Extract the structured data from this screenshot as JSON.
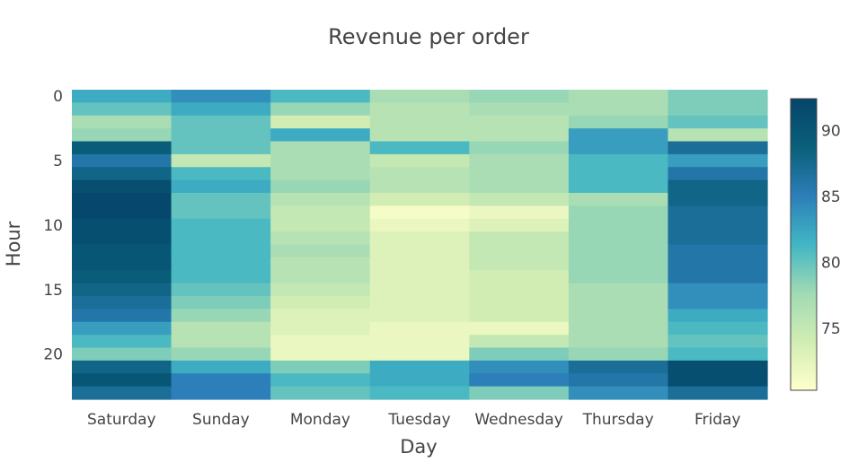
{
  "chart_data": {
    "type": "heatmap",
    "title": "Revenue per order",
    "xlabel": "Day",
    "ylabel": "Hour",
    "x": [
      "Saturday",
      "Sunday",
      "Monday",
      "Tuesday",
      "Wednesday",
      "Thursday",
      "Friday"
    ],
    "y": [
      0,
      1,
      2,
      3,
      4,
      5,
      6,
      7,
      8,
      9,
      10,
      11,
      12,
      13,
      14,
      15,
      16,
      17,
      18,
      19,
      20,
      21,
      22,
      23
    ],
    "y_ticks": [
      0,
      5,
      10,
      15,
      20
    ],
    "y_reversed": true,
    "zmin": 70.3,
    "zmax": 92.4,
    "colorbar_ticks": [
      75,
      80,
      85,
      90
    ],
    "colorscale": [
      "#ffffcc",
      "#d1edb3",
      "#a1dab4",
      "#41b6c4",
      "#2c7fb8",
      "#0a5f7a",
      "#05456b"
    ],
    "z": [
      [
        82,
        84,
        81,
        77,
        78,
        77,
        79
      ],
      [
        80,
        82,
        78,
        76,
        77,
        77,
        79
      ],
      [
        77,
        80,
        74,
        76,
        76,
        78,
        80
      ],
      [
        78,
        80,
        82,
        76,
        76,
        83,
        76
      ],
      [
        89,
        80,
        77,
        81,
        78,
        83,
        87
      ],
      [
        86,
        75,
        77,
        75,
        77,
        81,
        83
      ],
      [
        88,
        81,
        77,
        76,
        77,
        81,
        86
      ],
      [
        91,
        82,
        78,
        76,
        77,
        81,
        88
      ],
      [
        92,
        80,
        76,
        74,
        75,
        77,
        88
      ],
      [
        92,
        80,
        75,
        71,
        72,
        78,
        87
      ],
      [
        91,
        81,
        75,
        72,
        73,
        78,
        87
      ],
      [
        91,
        81,
        76,
        73,
        75,
        78,
        87
      ],
      [
        90,
        81,
        77,
        73,
        75,
        78,
        86
      ],
      [
        90,
        81,
        76,
        73,
        75,
        78,
        86
      ],
      [
        89,
        81,
        76,
        73,
        74,
        78,
        86
      ],
      [
        88,
        80,
        75,
        73,
        74,
        77,
        84
      ],
      [
        87,
        79,
        74,
        73,
        74,
        77,
        84
      ],
      [
        86,
        78,
        73,
        73,
        74,
        77,
        82
      ],
      [
        83,
        76,
        73,
        72,
        72,
        77,
        81
      ],
      [
        81,
        76,
        72,
        72,
        75,
        77,
        80
      ],
      [
        79,
        78,
        72,
        72,
        79,
        78,
        81
      ],
      [
        88,
        82,
        79,
        82,
        84,
        87,
        91
      ],
      [
        90,
        85,
        81,
        82,
        85,
        86,
        91
      ],
      [
        87,
        85,
        80,
        81,
        79,
        84,
        87
      ]
    ]
  }
}
